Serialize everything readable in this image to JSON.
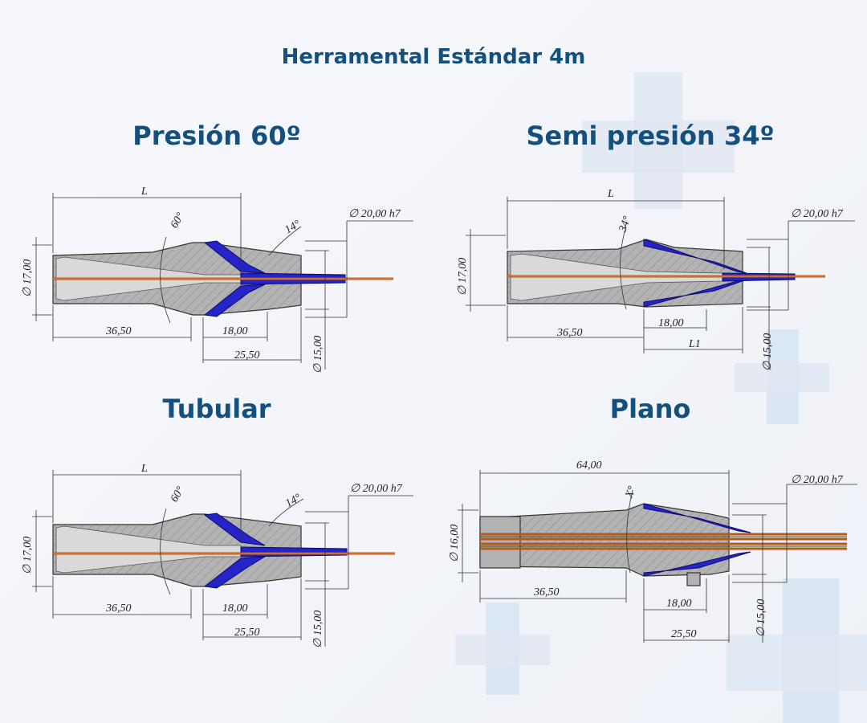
{
  "title": "Herramental Estándar 4m",
  "colors": {
    "title": "#14507e",
    "body": "#b3b3b3",
    "insert": "#2424c8",
    "wire": "#b8561c"
  },
  "panels": [
    {
      "title": "Presión 60º",
      "labels": {
        "len": "L",
        "angle1": "60°",
        "angle2": "14°",
        "od": "∅ 20,00 h7",
        "d1": "∅ 17,00",
        "l1": "36,50",
        "l2": "18,00",
        "l3": "25,50",
        "d2": "∅ 15,00"
      }
    },
    {
      "title": "Semi presión 34º",
      "labels": {
        "len": "L",
        "angle1": "34°",
        "od": "∅ 20,00 h7",
        "d1": "∅ 17,00",
        "l1": "36,50",
        "l2": "18,00",
        "l3": "L1",
        "d2": "∅ 15,00"
      }
    },
    {
      "title": "Tubular",
      "labels": {
        "len": "L",
        "angle1": "60°",
        "angle2": "14°",
        "od": "∅ 20,00 h7",
        "d1": "∅ 17,00",
        "l1": "36,50",
        "l2": "18,00",
        "l3": "25,50",
        "d2": "∅ 15,00"
      }
    },
    {
      "title": "Plano",
      "labels": {
        "len": "64,00",
        "angle1": "X°",
        "od": "∅ 20,00 h7",
        "d1": "∅ 16,00",
        "l1": "36,50",
        "l2": "18,00",
        "l3": "25,50",
        "d2": "∅ 15,00"
      }
    }
  ]
}
